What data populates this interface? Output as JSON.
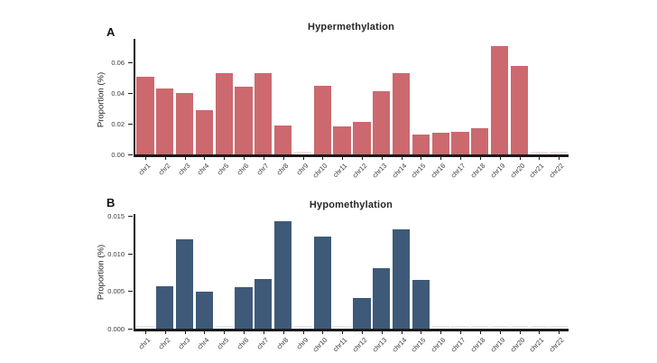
{
  "figure": {
    "background": "#ffffff",
    "axis_color": "#1a1a1a"
  },
  "chart_data": [
    {
      "type": "bar",
      "panel_label": "A",
      "title": "Hypermethylation",
      "xlabel": "",
      "ylabel": "Proportion (%)",
      "categories": [
        "chr1",
        "chr2",
        "chr3",
        "chr4",
        "chr5",
        "chr6",
        "chr7",
        "chr8",
        "chr9",
        "chr10",
        "chr11",
        "chr12",
        "chr13",
        "chr14",
        "chr15",
        "chr16",
        "chr17",
        "chr18",
        "chr19",
        "chr20",
        "chr21",
        "chr22"
      ],
      "values": [
        0.051,
        0.043,
        0.04,
        0.029,
        0.053,
        0.044,
        0.053,
        0.019,
        0,
        0.045,
        0.018,
        0.021,
        0.041,
        0.053,
        0.013,
        0.014,
        0.015,
        0.017,
        0.071,
        0.058,
        0,
        0
      ],
      "ylim": [
        0,
        0.0755
      ],
      "yticks": [
        0,
        0.02,
        0.04,
        0.06
      ],
      "ytick_labels": [
        "0.00",
        "0.02",
        "0.04",
        "0.06"
      ],
      "bar_color": "#cb696f",
      "zero_bar_color": "#f7dfe1",
      "grid": false,
      "legend": "none"
    },
    {
      "type": "bar",
      "panel_label": "B",
      "title": "Hypomethylation",
      "xlabel": "",
      "ylabel": "Proportion (%)",
      "categories": [
        "chr1",
        "chr2",
        "chr3",
        "chr4",
        "chr5",
        "chr6",
        "chr7",
        "chr8",
        "chr9",
        "chr10",
        "chr11",
        "chr12",
        "chr13",
        "chr14",
        "chr15",
        "chr16",
        "chr17",
        "chr18",
        "chr19",
        "chr20",
        "chr21",
        "chr22"
      ],
      "values": [
        0,
        0.0057,
        0.0119,
        0.0049,
        0,
        0.0055,
        0.0066,
        0.0143,
        0,
        0.0123,
        0,
        0.0041,
        0.0081,
        0.0133,
        0.0065,
        0,
        0,
        0,
        0,
        0,
        0,
        0
      ],
      "ylim": [
        0,
        0.0153
      ],
      "yticks": [
        0,
        0.005,
        0.01,
        0.015
      ],
      "ytick_labels": [
        "0.000",
        "0.005",
        "0.010",
        "0.015"
      ],
      "bar_color": "#3e5a78",
      "zero_bar_color": "#e4e9f1",
      "grid": false,
      "legend": "none"
    }
  ]
}
